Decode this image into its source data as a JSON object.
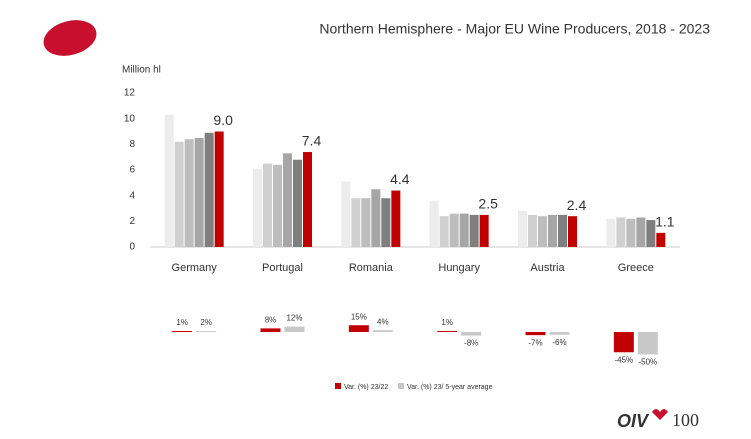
{
  "chart_data": [
    {
      "type": "bar",
      "title": "Northern Hemisphere - Major EU Wine Producers, 2018 - 2023",
      "y_label": "Million hl",
      "categories": [
        "Germany",
        "Portugal",
        "Romania",
        "Hungary",
        "Austria",
        "Greece"
      ],
      "series": [
        {
          "color": "#ececec",
          "values": [
            10.3,
            6.1,
            5.1,
            3.6,
            2.8,
            2.2
          ]
        },
        {
          "color": "#d0d0d0",
          "values": [
            8.2,
            6.5,
            3.8,
            2.4,
            2.5,
            2.3
          ]
        },
        {
          "color": "#bdbdbd",
          "values": [
            8.4,
            6.4,
            3.8,
            2.6,
            2.4,
            2.2
          ]
        },
        {
          "color": "#a6a6a6",
          "values": [
            8.5,
            7.3,
            4.5,
            2.6,
            2.5,
            2.3
          ]
        },
        {
          "color": "#7f7f7f",
          "values": [
            8.9,
            6.8,
            3.8,
            2.5,
            2.5,
            2.1
          ]
        },
        {
          "color": "#c00000",
          "values": [
            9.0,
            7.4,
            4.4,
            2.5,
            2.4,
            1.1
          ],
          "value_labels": [
            "9.0",
            "7.4",
            "4.4",
            "2.5",
            "2.4",
            "1.1"
          ]
        }
      ],
      "ylim": [
        0,
        12
      ],
      "yticks": [
        0,
        2,
        4,
        6,
        8,
        10,
        12
      ],
      "grid": false
    },
    {
      "type": "bar",
      "series": [
        {
          "name": "Var. (%) 23/22",
          "color": "#c00000",
          "values": [
            1,
            8,
            15,
            1,
            -7,
            -45
          ],
          "value_labels": [
            "1%",
            "8%",
            "15%",
            "1%",
            "-7%",
            "-45%"
          ]
        },
        {
          "name": "Var. (%) 23/ 5-year average",
          "color": "#c8c8c8",
          "values": [
            2,
            12,
            4,
            -8,
            -6,
            -50
          ],
          "value_labels": [
            "2%",
            "12%",
            "4%",
            "-8%",
            "-6%",
            "-50%"
          ]
        }
      ]
    }
  ],
  "logo": {
    "text": "OIV",
    "number": "100"
  }
}
